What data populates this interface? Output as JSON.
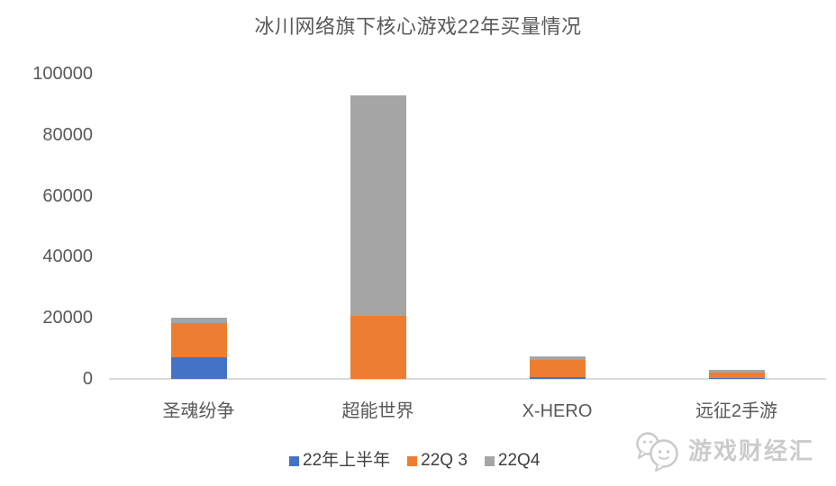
{
  "title": "冰川网络旗下核心游戏22年买量情况",
  "chart_data": {
    "type": "bar",
    "stacked": true,
    "title": "冰川网络旗下核心游戏22年买量情况",
    "categories": [
      "圣魂纷争",
      "超能世界",
      "X-HERO",
      "远征2手游"
    ],
    "series": [
      {
        "name": "22年上半年",
        "color": "#4472C4",
        "values": [
          7200,
          0,
          700,
          300
        ]
      },
      {
        "name": "22Q 3",
        "color": "#ED7D31",
        "values": [
          11200,
          20600,
          5500,
          1800
        ]
      },
      {
        "name": "22Q4",
        "color": "#A5A5A5",
        "values": [
          1600,
          72400,
          1100,
          900
        ]
      }
    ],
    "totals": [
      20000,
      93000,
      7300,
      3000
    ],
    "xlabel": "",
    "ylabel": "",
    "ylim": [
      0,
      100000
    ],
    "yticks": [
      0,
      20000,
      40000,
      60000,
      80000,
      100000
    ],
    "grid": false,
    "legend_position": "bottom"
  },
  "watermark": {
    "text": "游戏财经汇",
    "logo": "chat-bubbles-faces-logo"
  },
  "colors": {
    "axis_line": "#D9D9D9",
    "axis_text": "#595959",
    "legend_text": "#3F3F3F",
    "watermark": "#CBCBCB",
    "background": "#FFFFFF"
  }
}
